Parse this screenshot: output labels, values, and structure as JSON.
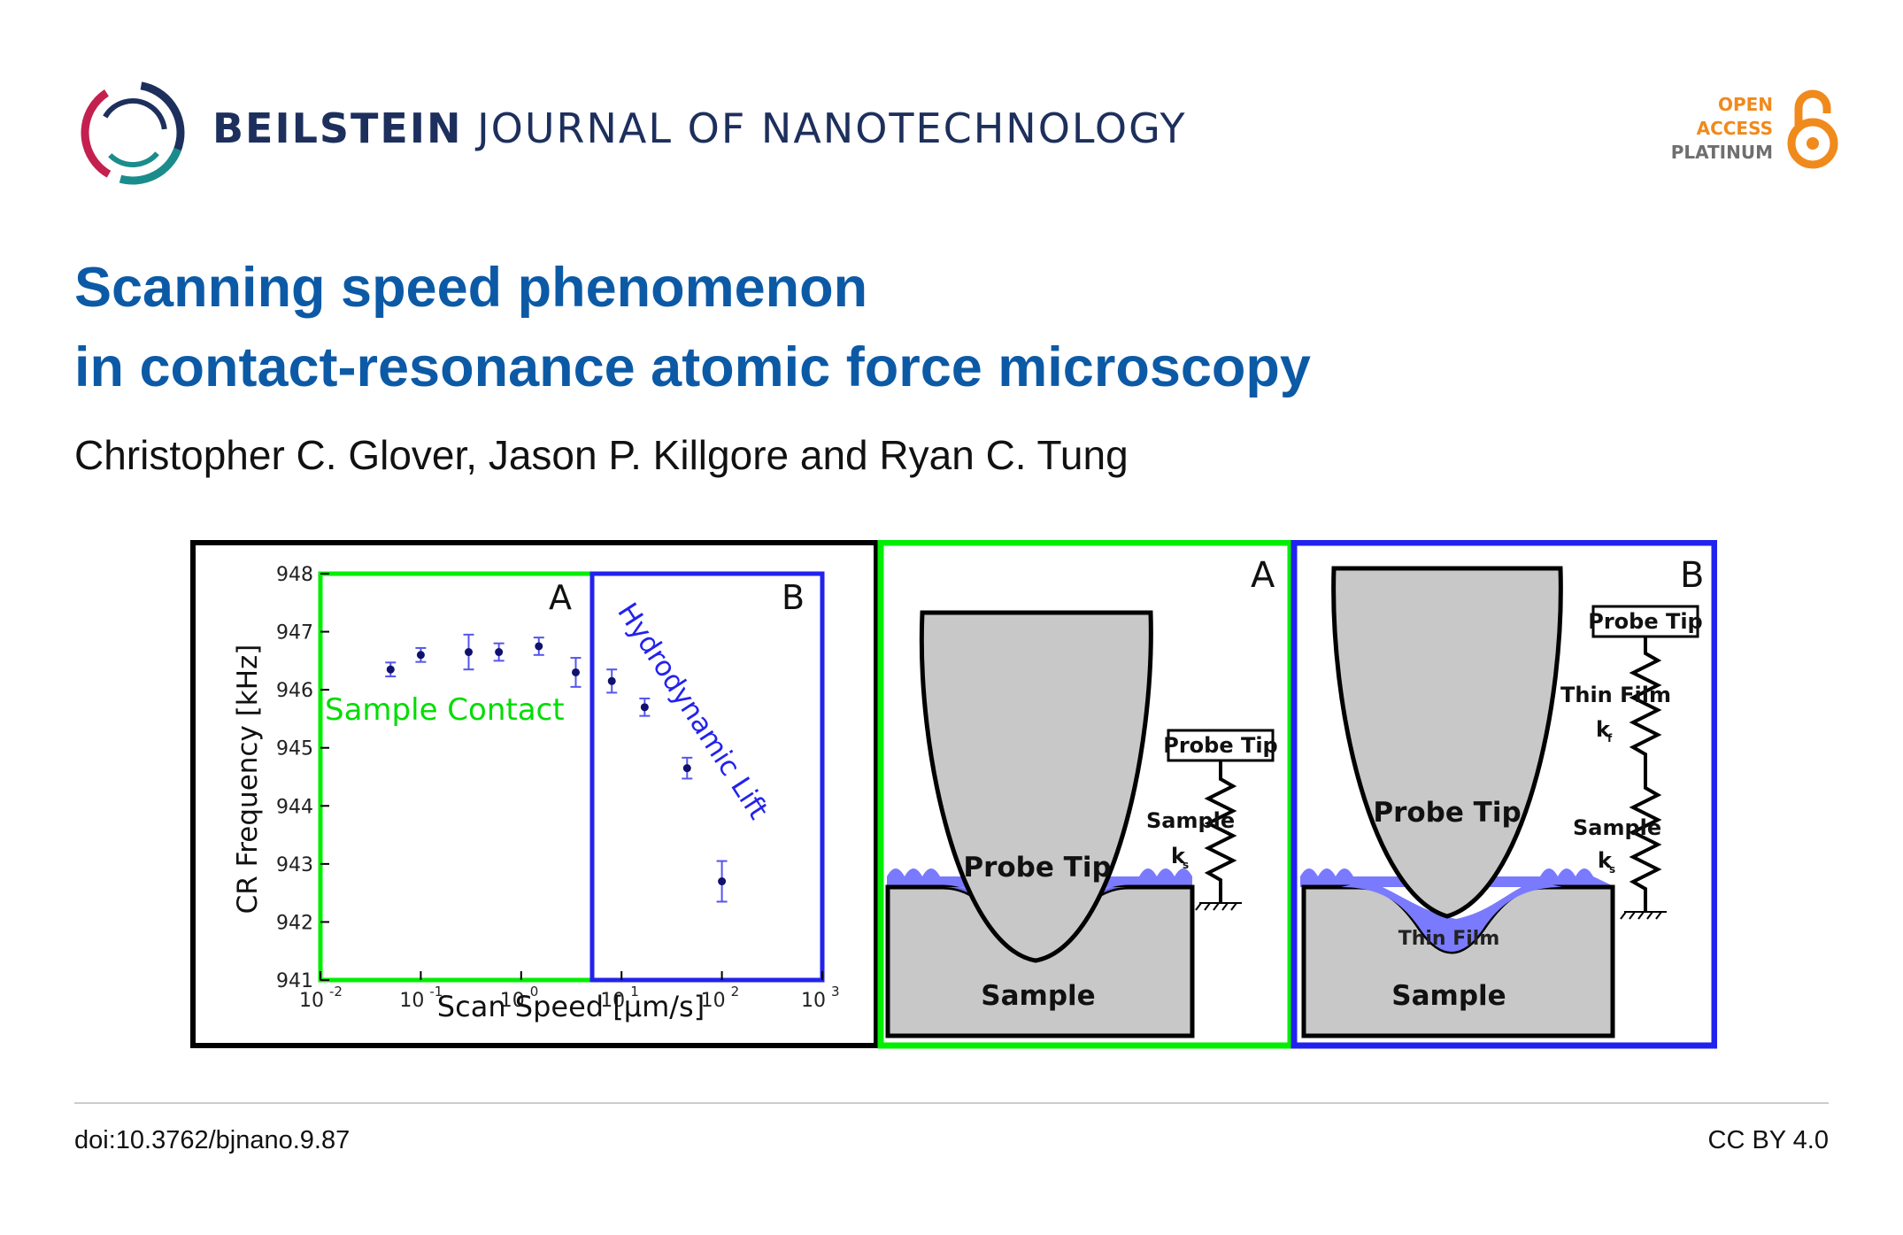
{
  "header": {
    "journal_bold": "BEILSTEIN",
    "journal_rest": "JOURNAL OF NANOTECHNOLOGY",
    "oa_line1": "OPEN",
    "oa_line2": "ACCESS",
    "oa_line3": "PLATINUM"
  },
  "article": {
    "title_line1": "Scanning speed phenomenon",
    "title_line2": "in contact-resonance atomic force microscopy",
    "authors": "Christopher C. Glover, Jason P. Killgore and Ryan C. Tung"
  },
  "figure": {
    "panel_plot": {
      "region_a_label": "A",
      "region_b_label": "B",
      "region_a_text": "Sample Contact",
      "region_b_text": "Hydrodynamic Lift",
      "colors": {
        "region_a": "#00ee00",
        "region_b": "#2222ee",
        "points": "#11116e",
        "errorbars": "#5555ee"
      }
    },
    "panel_a": {
      "label": "A",
      "tip_label": "Probe Tip",
      "sample_label": "Sample",
      "spring_box": "Probe Tip",
      "spring_label": "Sample",
      "spring_k": "k",
      "spring_k_sub": "s"
    },
    "panel_b": {
      "label": "B",
      "tip_label": "Probe Tip",
      "film_label": "Thin Film",
      "sample_label": "Sample",
      "spring_box": "Probe Tip",
      "spring1_label": "Thin Film",
      "spring1_k": "k",
      "spring1_k_sub": "f",
      "spring2_label": "Sample",
      "spring2_k": "k",
      "spring2_k_sub": "s"
    }
  },
  "chart_data": {
    "type": "scatter",
    "xlabel": "Scan Speed [μm/s]",
    "ylabel": "CR Frequency [kHz]",
    "x_scale": "log",
    "xlim": [
      0.01,
      1000
    ],
    "ylim": [
      941,
      948
    ],
    "x_ticks": [
      "10-2",
      "10-1",
      "100",
      "101",
      "102",
      "103"
    ],
    "y_ticks": [
      "941",
      "942",
      "943",
      "944",
      "945",
      "946",
      "947",
      "948"
    ],
    "x": [
      0.05,
      0.1,
      0.3,
      0.6,
      1.5,
      3.5,
      8,
      17,
      45,
      100
    ],
    "y": [
      946.35,
      946.6,
      946.65,
      946.65,
      946.75,
      946.3,
      946.15,
      945.7,
      944.65,
      942.7
    ],
    "yerr": [
      0.12,
      0.12,
      0.3,
      0.15,
      0.15,
      0.25,
      0.2,
      0.15,
      0.18,
      0.35
    ],
    "regions": [
      {
        "label": "A",
        "name": "Sample Contact",
        "x_range": [
          0.01,
          5
        ]
      },
      {
        "label": "B",
        "name": "Hydrodynamic Lift",
        "x_range": [
          5,
          1000
        ]
      }
    ]
  },
  "footer": {
    "doi": "doi:10.3762/bjnano.9.87",
    "license": "CC BY 4.0"
  }
}
